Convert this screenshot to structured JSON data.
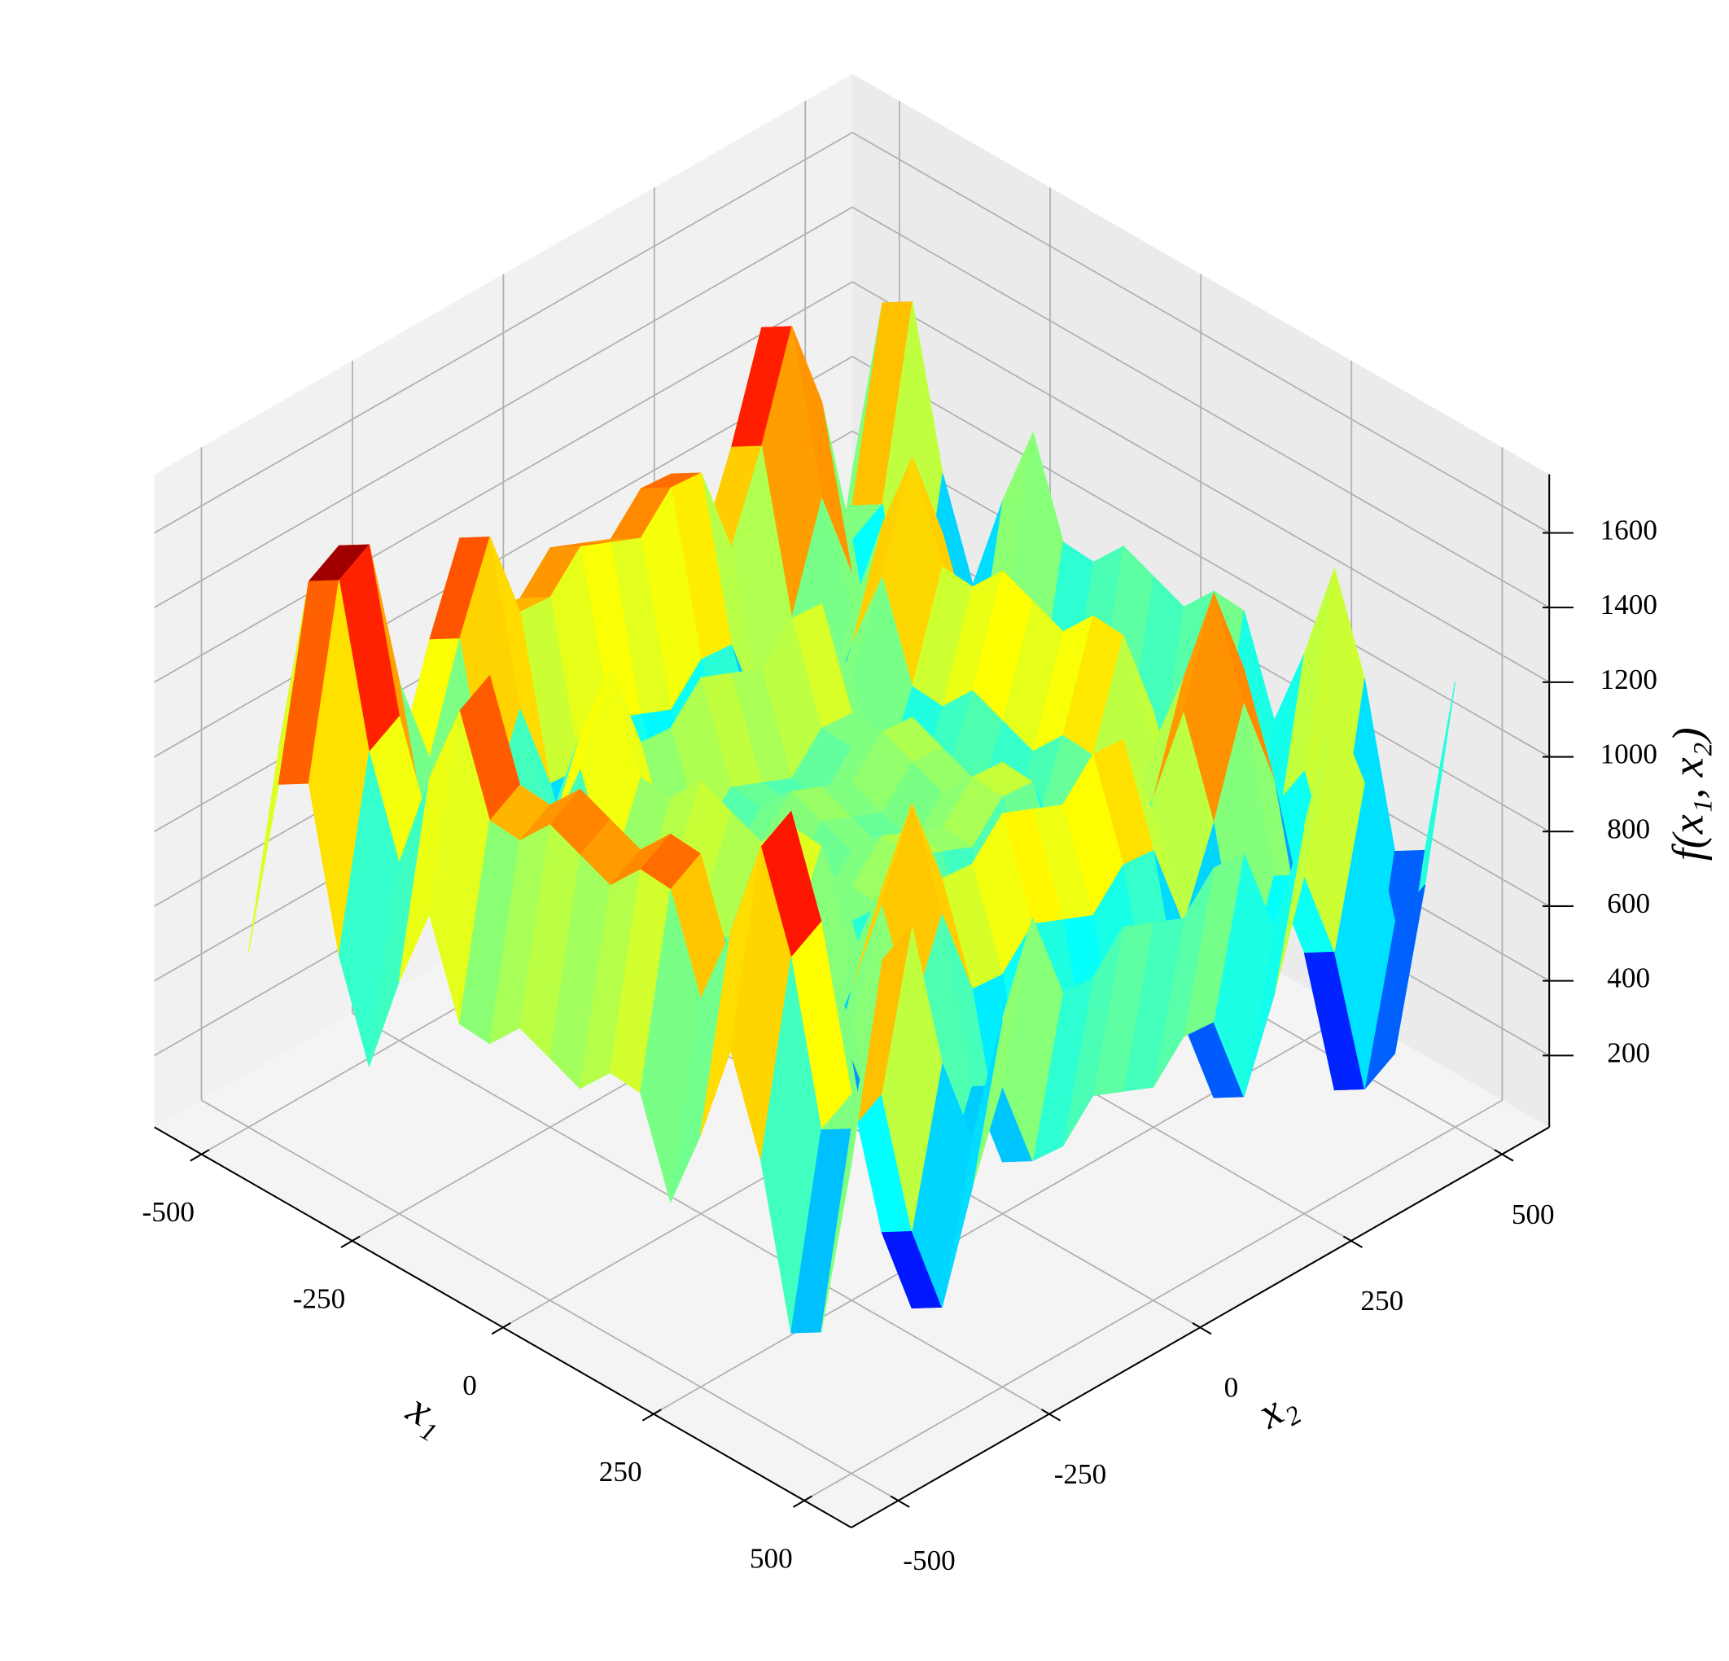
{
  "chart_data": {
    "type": "surface",
    "x_label": "x₁",
    "y_label": "x₂",
    "z_label": "f(x₁, x₂)",
    "colormap": "jet",
    "grid": true,
    "xlim": [
      -578,
      578
    ],
    "ylim": [
      -578,
      578
    ],
    "zlim": [
      8,
      1757
    ],
    "xticks": [
      -500,
      -250,
      0,
      250,
      500
    ],
    "yticks": [
      -500,
      -250,
      0,
      250,
      500
    ],
    "zticks": [
      200,
      400,
      600,
      800,
      1000,
      1200,
      1400,
      1600
    ],
    "x": [
      -500,
      -450,
      -400,
      -350,
      -300,
      -250,
      -200,
      -150,
      -100,
      -50,
      0,
      50,
      100,
      150,
      200,
      250,
      300,
      350,
      400,
      450,
      500
    ],
    "y": [
      -500,
      -450,
      -400,
      -350,
      -300,
      -250,
      -200,
      -150,
      -100,
      -50,
      0,
      50,
      100,
      150,
      200,
      250,
      300,
      350,
      400,
      450,
      500
    ],
    "z": [
      [
        476,
        973,
        1022,
        608,
        357,
        631,
        857,
        610,
        603,
        692,
        657,
        622,
        711,
        704,
        457,
        683,
        957,
        707,
        292,
        341,
        838
      ],
      [
        973,
        1470,
        1519,
        1105,
        854,
        1128,
        1354,
        1107,
        1100,
        1189,
        1154,
        1119,
        1208,
        1201,
        954,
        1180,
        1454,
        1204,
        789,
        838,
        1335
      ],
      [
        1022,
        1519,
        1568,
        1154,
        903,
        1177,
        1403,
        1156,
        1149,
        1238,
        1203,
        1168,
        1257,
        1250,
        1003,
        1229,
        1503,
        1253,
        838,
        887,
        1384
      ],
      [
        608,
        1105,
        1154,
        740,
        489,
        763,
        989,
        742,
        735,
        824,
        789,
        754,
        843,
        836,
        589,
        815,
        1089,
        839,
        424,
        473,
        970
      ],
      [
        357,
        854,
        903,
        489,
        238,
        512,
        738,
        491,
        484,
        573,
        538,
        503,
        592,
        585,
        338,
        564,
        838,
        588,
        173,
        222,
        719
      ],
      [
        631,
        1128,
        1177,
        763,
        512,
        786,
        1012,
        765,
        758,
        847,
        812,
        777,
        866,
        859,
        612,
        838,
        1112,
        862,
        447,
        496,
        993
      ],
      [
        857,
        1354,
        1403,
        989,
        738,
        1012,
        1238,
        991,
        984,
        1073,
        1038,
        1003,
        1092,
        1085,
        838,
        1064,
        1338,
        1088,
        673,
        722,
        1219
      ],
      [
        610,
        1107,
        1156,
        742,
        491,
        765,
        991,
        744,
        737,
        826,
        791,
        756,
        845,
        838,
        591,
        817,
        1091,
        841,
        426,
        475,
        972
      ],
      [
        603,
        1100,
        1149,
        735,
        484,
        758,
        984,
        737,
        730,
        819,
        784,
        749,
        838,
        831,
        584,
        810,
        1084,
        834,
        419,
        468,
        965
      ],
      [
        692,
        1189,
        1238,
        824,
        573,
        847,
        1073,
        826,
        819,
        908,
        873,
        838,
        927,
        920,
        673,
        899,
        1173,
        923,
        508,
        557,
        1054
      ],
      [
        657,
        1154,
        1203,
        789,
        538,
        812,
        1038,
        791,
        784,
        873,
        838,
        803,
        892,
        885,
        638,
        864,
        1138,
        888,
        473,
        522,
        1019
      ],
      [
        622,
        1119,
        1168,
        754,
        503,
        777,
        1003,
        756,
        749,
        838,
        803,
        768,
        857,
        850,
        603,
        829,
        1103,
        853,
        438,
        487,
        984
      ],
      [
        711,
        1208,
        1257,
        843,
        592,
        866,
        1092,
        845,
        838,
        927,
        892,
        857,
        946,
        939,
        692,
        918,
        1192,
        942,
        527,
        576,
        1073
      ],
      [
        704,
        1201,
        1250,
        836,
        585,
        859,
        1085,
        838,
        831,
        920,
        885,
        850,
        939,
        932,
        685,
        911,
        1185,
        935,
        520,
        569,
        1066
      ],
      [
        457,
        954,
        1003,
        589,
        338,
        612,
        838,
        591,
        584,
        673,
        638,
        603,
        692,
        685,
        438,
        664,
        938,
        688,
        273,
        322,
        819
      ],
      [
        683,
        1180,
        1229,
        815,
        564,
        838,
        1064,
        817,
        810,
        899,
        864,
        829,
        918,
        911,
        664,
        890,
        1164,
        914,
        499,
        548,
        1045
      ],
      [
        957,
        1454,
        1503,
        1089,
        838,
        1112,
        1338,
        1091,
        1084,
        1173,
        1138,
        1103,
        1192,
        1185,
        938,
        1164,
        1438,
        1188,
        773,
        822,
        1319
      ],
      [
        707,
        1204,
        1253,
        839,
        588,
        862,
        1088,
        841,
        834,
        923,
        888,
        853,
        942,
        935,
        688,
        914,
        1188,
        938,
        523,
        572,
        1069
      ],
      [
        292,
        789,
        838,
        424,
        173,
        447,
        673,
        426,
        419,
        508,
        473,
        438,
        527,
        520,
        273,
        499,
        773,
        523,
        108,
        157,
        654
      ],
      [
        341,
        838,
        887,
        473,
        222,
        496,
        722,
        475,
        468,
        557,
        522,
        487,
        576,
        569,
        322,
        548,
        822,
        572,
        157,
        206,
        703
      ],
      [
        838,
        1335,
        1384,
        970,
        719,
        993,
        1219,
        972,
        965,
        1054,
        1019,
        984,
        1073,
        1066,
        819,
        1045,
        1319,
        1069,
        654,
        703,
        1200
      ]
    ]
  }
}
